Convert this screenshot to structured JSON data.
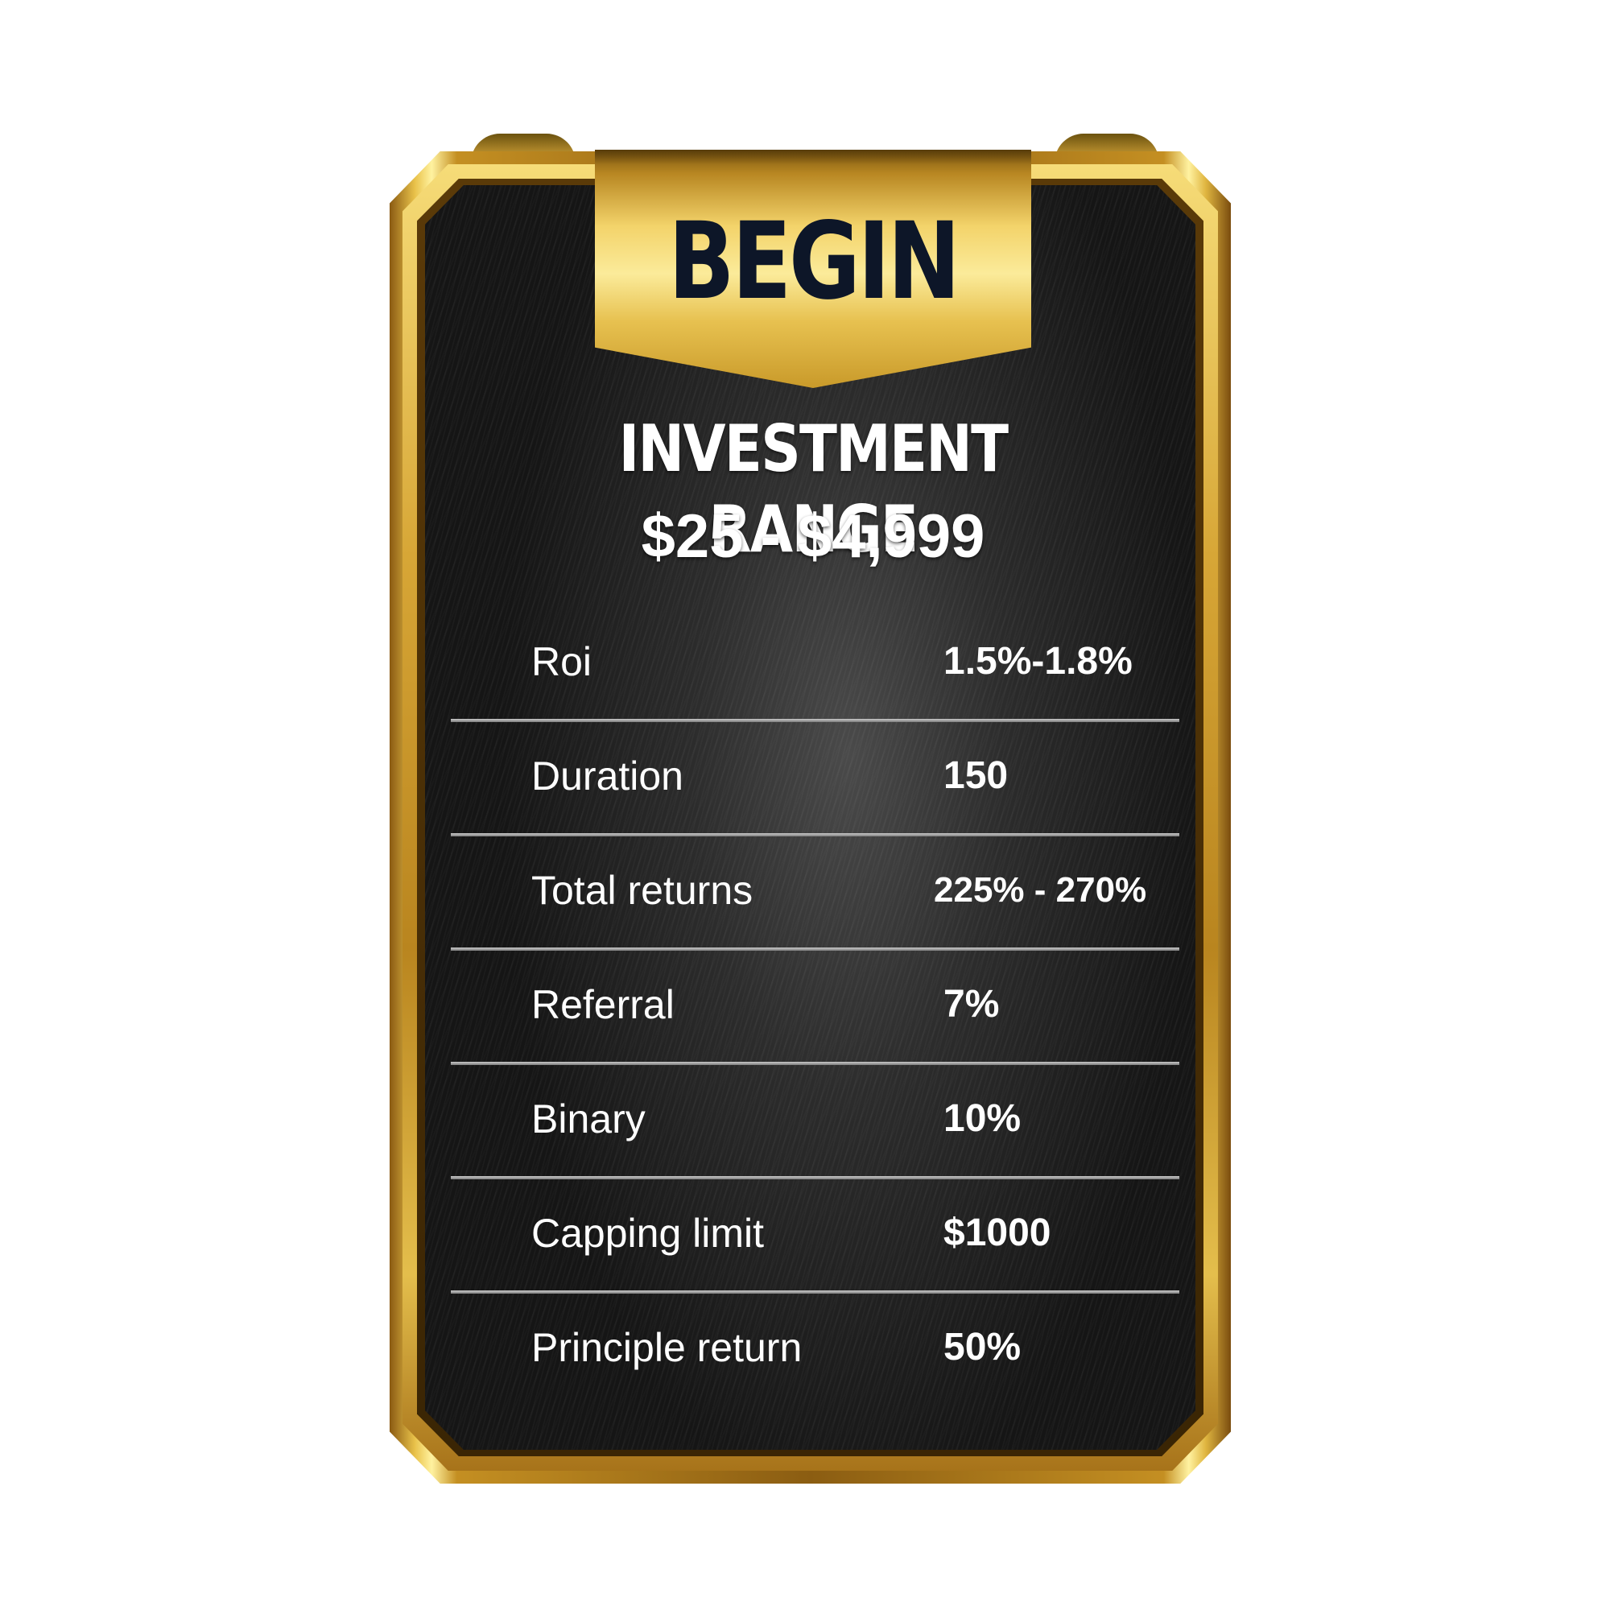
{
  "plan": {
    "name": "BEGIN",
    "range_title": "INVESTMENT RANGE",
    "range_value": "$25 - $4,999"
  },
  "rows": [
    {
      "label": "Roi",
      "value": "1.5%-1.8%"
    },
    {
      "label": "Duration",
      "value": "150"
    },
    {
      "label": "Total returns",
      "value": "225% - 270%"
    },
    {
      "label": "Referral",
      "value": "7%"
    },
    {
      "label": "Binary",
      "value": "10%"
    },
    {
      "label": "Capping limit",
      "value": "$1000"
    },
    {
      "label": "Principle return",
      "value": "50%"
    }
  ],
  "colors": {
    "gold": "#e0b640",
    "panel": "#2c2c2c",
    "banner_text": "#0d1628",
    "text": "#ffffff"
  }
}
